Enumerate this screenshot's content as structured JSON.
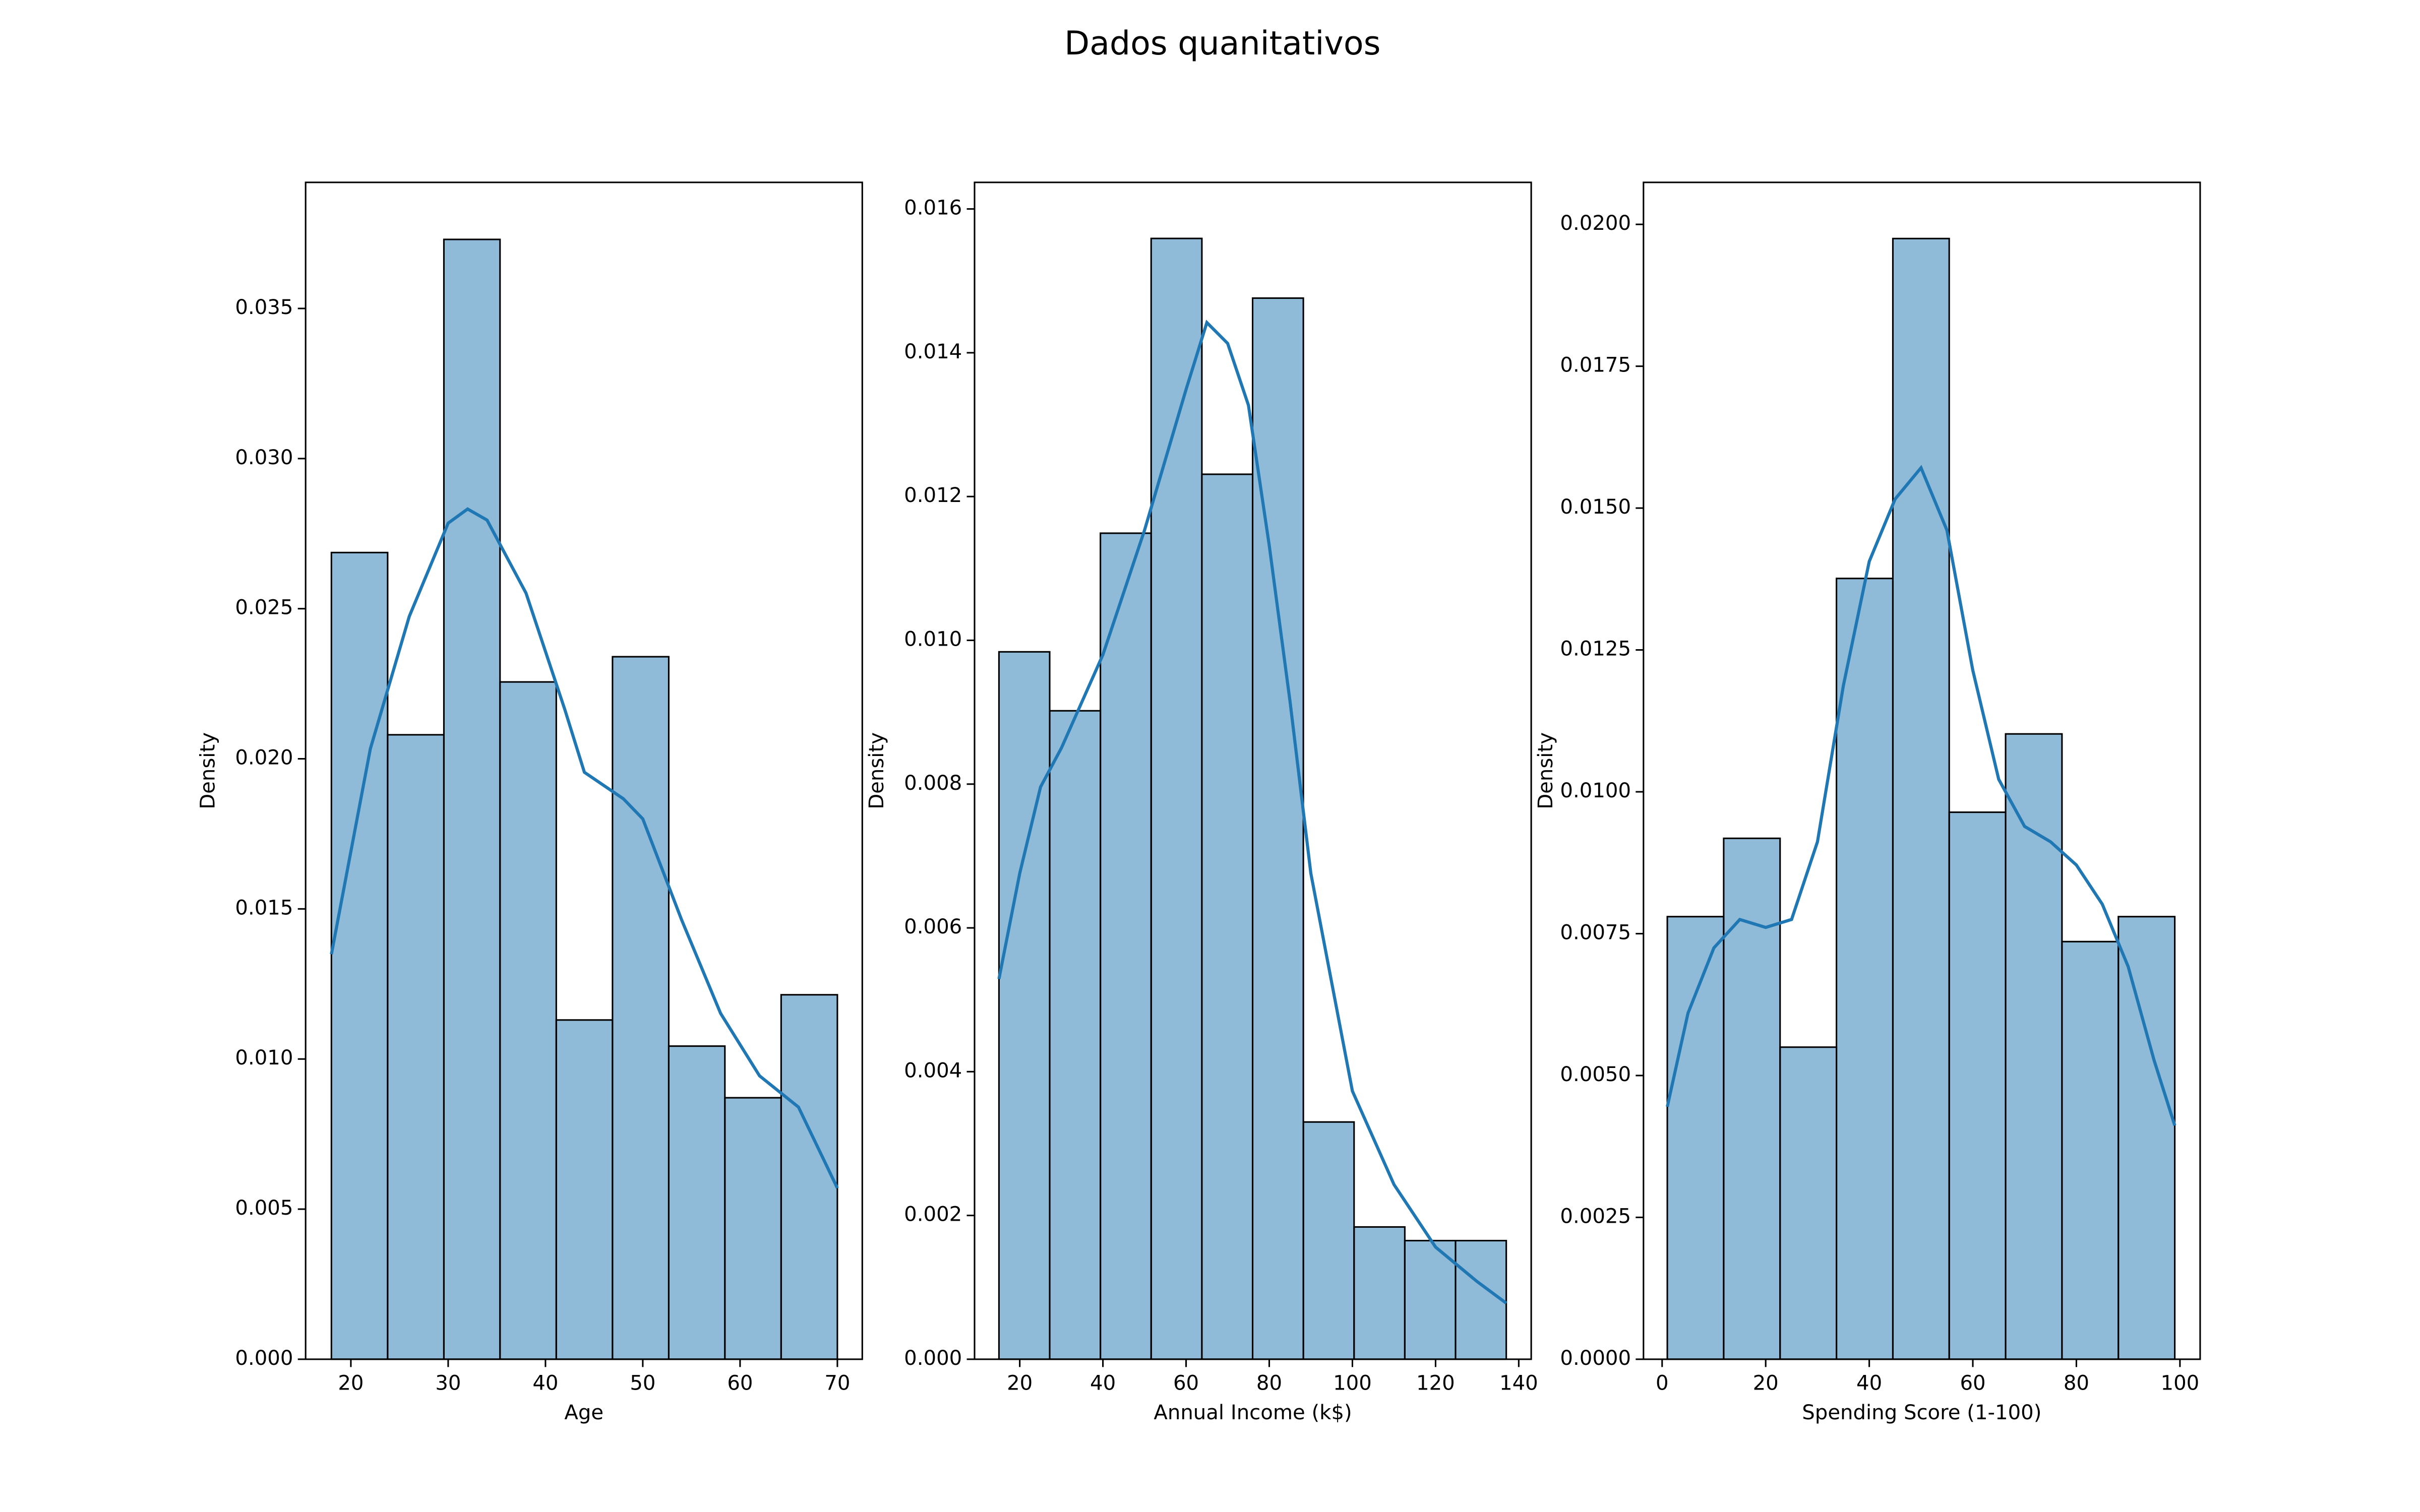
{
  "title": "Dados quanitativos",
  "chart_data": [
    {
      "type": "histogram",
      "xlabel": "Age",
      "ylabel": "Density",
      "color": "#1f77b4",
      "line_color": "#1f77b4",
      "bins": [
        18,
        23.78,
        29.56,
        35.33,
        41.11,
        46.89,
        52.67,
        58.44,
        64.22,
        70
      ],
      "values": [
        0.02687,
        0.0208,
        0.0373,
        0.02256,
        0.0113,
        0.0234,
        0.01043,
        0.00871,
        0.01214
      ],
      "kde": {
        "x": [
          18,
          22,
          26,
          30,
          32,
          34,
          38,
          42,
          44,
          48,
          50,
          54,
          58,
          62,
          66,
          70
        ],
        "values": [
          0.01349,
          0.02033,
          0.02474,
          0.02785,
          0.02832,
          0.02795,
          0.02552,
          0.02163,
          0.01955,
          0.01867,
          0.018,
          0.01463,
          0.01152,
          0.00944,
          0.0084,
          0.0057
        ]
      },
      "xlim": [
        15.35,
        72.56
      ],
      "xticks": [
        20,
        30,
        40,
        50,
        60,
        70
      ],
      "ylim": [
        0,
        0.0392
      ],
      "yticks": [
        {
          "value": 0,
          "label": "0.000"
        },
        0.005,
        {
          "value": 0.01,
          "label": "0.010"
        },
        0.015,
        {
          "value": 0.02,
          "label": "0.020"
        },
        0.025,
        {
          "value": 0.03,
          "label": "0.030"
        },
        0.035
      ]
    },
    {
      "type": "histogram",
      "xlabel": "Annual Income (k$)",
      "ylabel": "Density",
      "color": "#1f77b4",
      "line_color": "#1f77b4",
      "bins": [
        15,
        27.2,
        39.4,
        51.6,
        63.8,
        76,
        88.2,
        100.4,
        112.6,
        124.8,
        137
      ],
      "values": [
        0.00984,
        0.00902,
        0.01149,
        0.01559,
        0.01231,
        0.01476,
        0.0033,
        0.00184,
        0.00165,
        0.00165
      ],
      "kde": {
        "x": [
          15,
          20,
          25,
          30,
          40,
          50,
          60,
          65,
          70,
          75,
          80,
          85,
          90,
          100,
          110,
          120,
          130,
          137
        ],
        "values": [
          0.00529,
          0.00676,
          0.00796,
          0.0085,
          0.0098,
          0.01153,
          0.01349,
          0.01442,
          0.01413,
          0.01327,
          0.01132,
          0.00915,
          0.00676,
          0.00373,
          0.00243,
          0.00156,
          0.00108,
          0.00078
        ]
      },
      "xlim": [
        9.13,
        143
      ],
      "xticks": [
        20,
        40,
        60,
        80,
        100,
        120,
        140
      ],
      "ylim": [
        0,
        0.01637
      ],
      "yticks": [
        {
          "value": 0,
          "label": "0.000"
        },
        0.002,
        0.004,
        0.006,
        0.008,
        {
          "value": 0.01,
          "label": "0.010"
        },
        0.012,
        0.014,
        0.016
      ]
    },
    {
      "type": "histogram",
      "xlabel": "Spending Score (1-100)",
      "ylabel": "Density",
      "color": "#1f77b4",
      "line_color": "#1f77b4",
      "bins": [
        1,
        11.89,
        22.78,
        33.67,
        44.56,
        55.44,
        66.33,
        77.22,
        88.11,
        99
      ],
      "values": [
        0.0078,
        0.00918,
        0.0055,
        0.01376,
        0.01975,
        0.00964,
        0.01102,
        0.00736,
        0.0078
      ],
      "kde": {
        "x": [
          1,
          5,
          10,
          15,
          20,
          25,
          30,
          35,
          40,
          45,
          50,
          55,
          60,
          65,
          70,
          75,
          80,
          85,
          90,
          95,
          99
        ],
        "values": [
          0.00445,
          0.0061,
          0.00725,
          0.00775,
          0.00761,
          0.00775,
          0.00912,
          0.01187,
          0.01406,
          0.01516,
          0.01571,
          0.01461,
          0.01214,
          0.01022,
          0.00939,
          0.00912,
          0.00871,
          0.00802,
          0.00692,
          0.00527,
          0.00412
        ]
      },
      "xlim": [
        -3.6,
        103.9
      ],
      "xticks": [
        0,
        20,
        40,
        60,
        80,
        100
      ],
      "ylim": [
        0,
        0.02074
      ],
      "yticks": [
        {
          "value": 0,
          "label": "0.0000"
        },
        0.0025,
        {
          "value": 0.005,
          "label": "0.0050"
        },
        0.0075,
        {
          "value": 0.01,
          "label": "0.0100"
        },
        0.0125,
        {
          "value": 0.015,
          "label": "0.0150"
        },
        0.0175,
        {
          "value": 0.02,
          "label": "0.0200"
        }
      ]
    }
  ]
}
